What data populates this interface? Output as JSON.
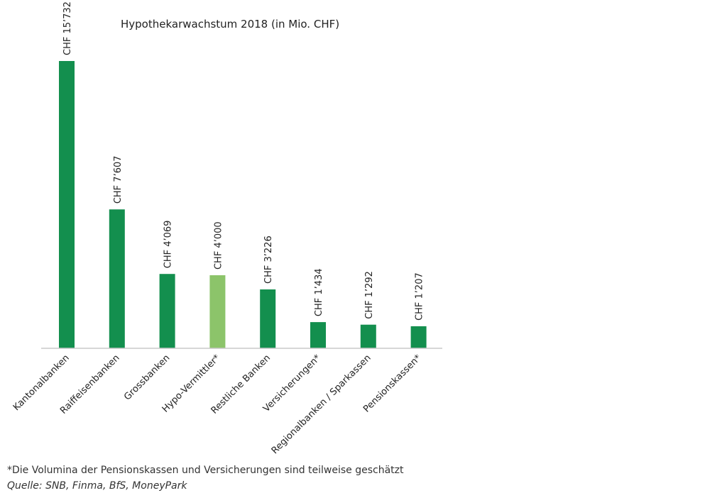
{
  "chart_data": {
    "type": "bar",
    "title": "Hypothekarwachstum 2018 (in Mio. CHF)",
    "xlabel": "",
    "ylabel": "",
    "ylim": [
      0,
      15732
    ],
    "grid": false,
    "legend": "none",
    "categories": [
      "Kantonalbanken",
      "Raiffeisenbanken",
      "Grossbanken",
      "Hypo-Vermittler*",
      "Restliche Banken",
      "Versicherungen*",
      "Regionalbanken / Sparkassen",
      "Pensionskassen*"
    ],
    "values": [
      15732,
      7607,
      4069,
      4000,
      3226,
      1434,
      1292,
      1207
    ],
    "value_labels": [
      "CHF 15’732",
      "CHF 7’607",
      "CHF 4’069",
      "CHF 4’000",
      "CHF 3’226",
      "CHF 1’434",
      "CHF 1’292",
      "CHF 1’207"
    ],
    "colors": [
      "#138f4e",
      "#138f4e",
      "#138f4e",
      "#8cc46a",
      "#138f4e",
      "#138f4e",
      "#138f4e",
      "#138f4e"
    ],
    "axis_color": "#c8c8c8"
  },
  "notes": {
    "footnote": "*Die Volumina der Pensionskassen und Versicherungen sind teilweise geschätzt",
    "source": "Quelle: SNB, Finma, BfS, MoneyPark"
  }
}
